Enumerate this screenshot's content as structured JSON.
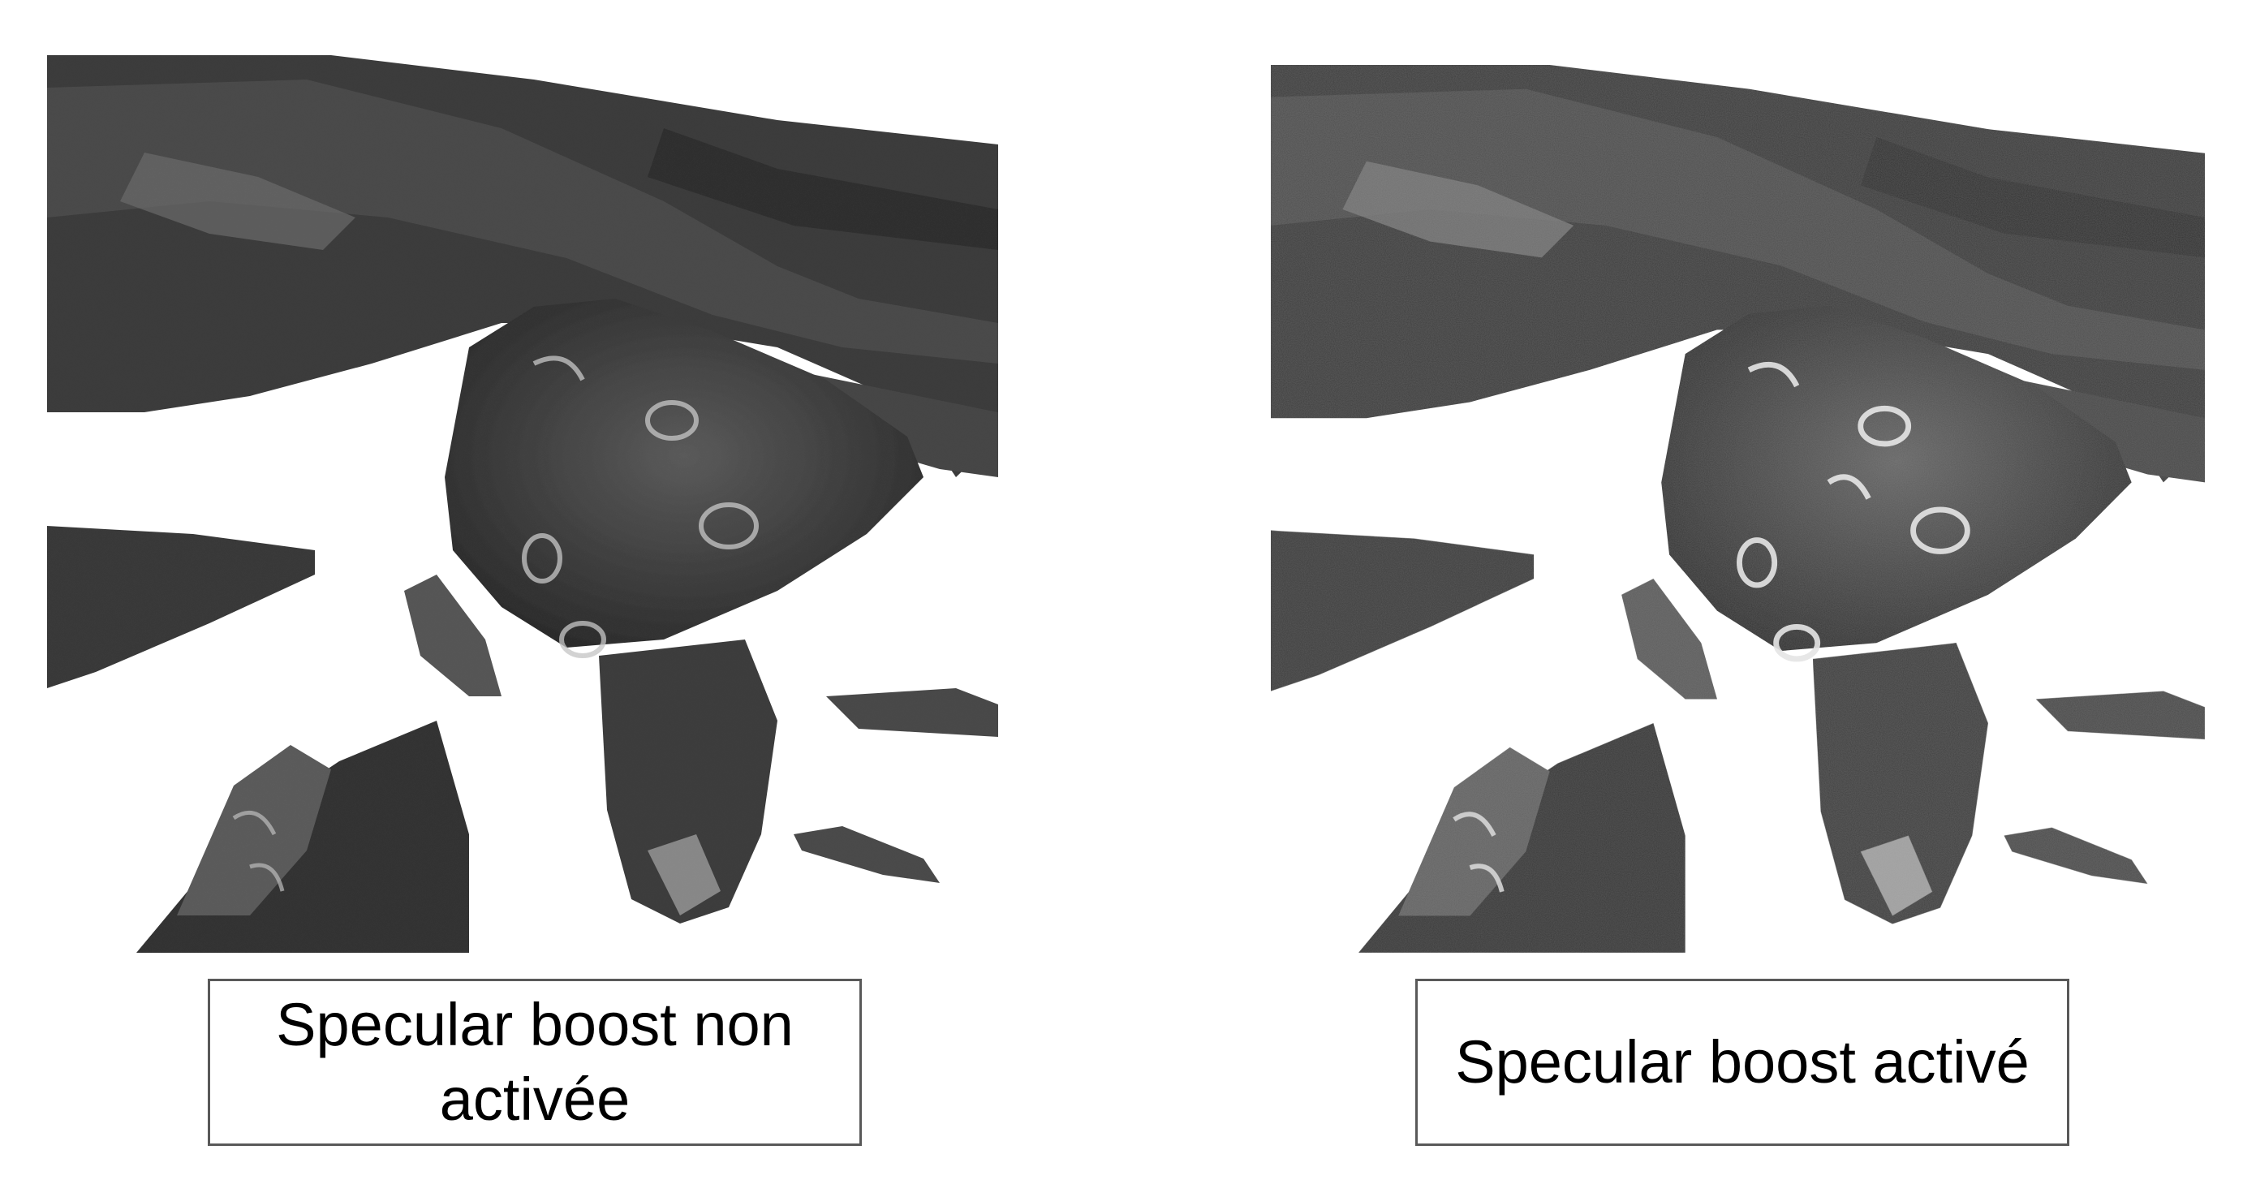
{
  "panels": [
    {
      "caption": "Specular boost non activée",
      "specular_boost": false
    },
    {
      "caption": "Specular boost activé",
      "specular_boost": true
    }
  ],
  "colors": {
    "background": "#ffffff",
    "tissue_dark": "#2b2b2b",
    "tissue_mid": "#474747",
    "tissue_light": "#8a8a8a",
    "highlight": "#d8d8d8",
    "caption_border": "#595959"
  }
}
